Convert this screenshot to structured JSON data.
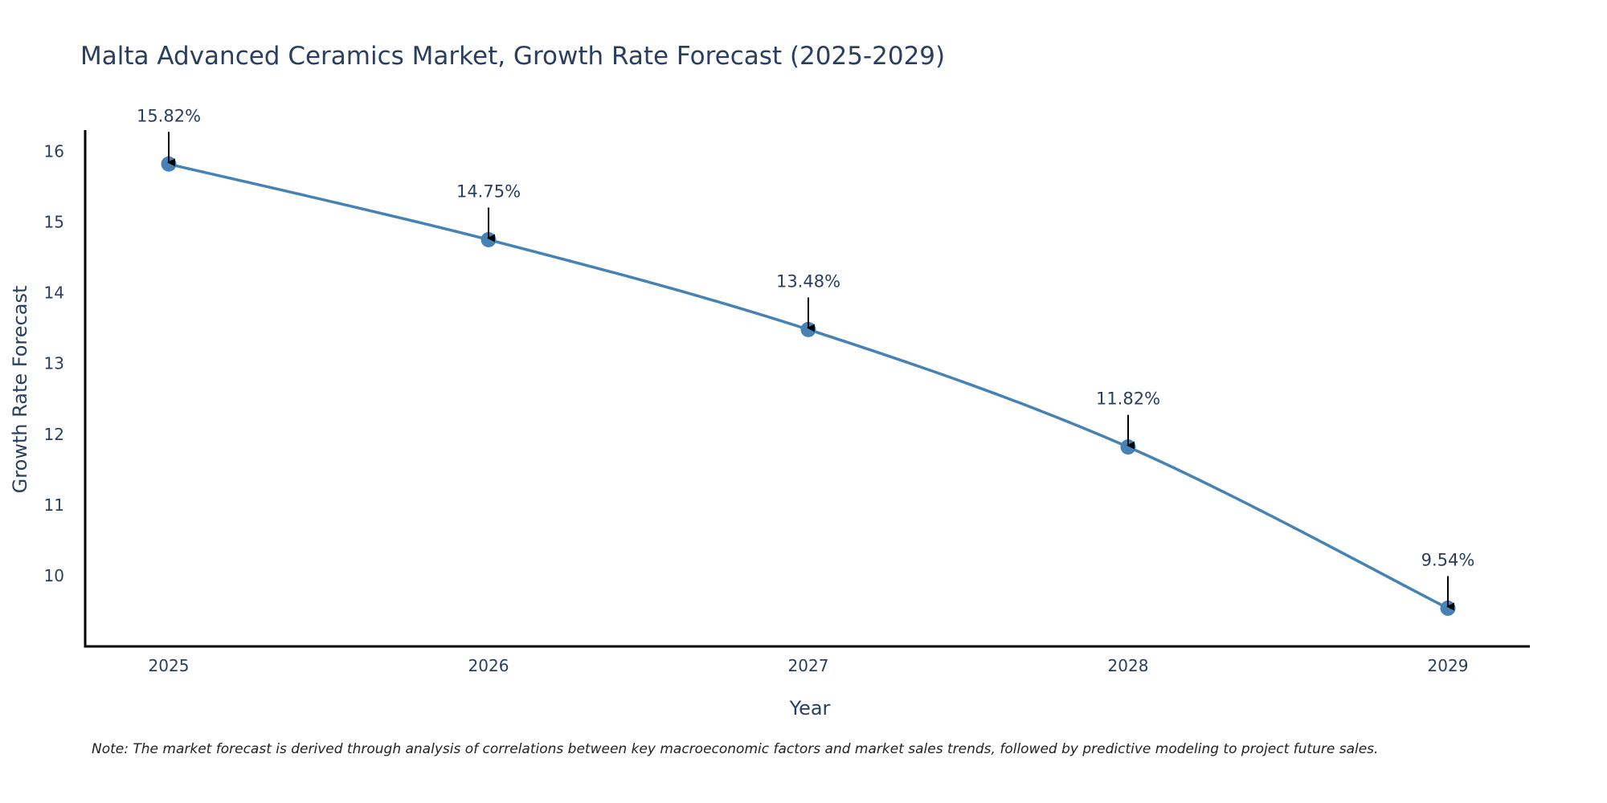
{
  "chart_data": {
    "type": "line",
    "title": "Malta Advanced Ceramics Market, Growth Rate Forecast (2025-2029)",
    "xlabel": "Year",
    "ylabel": "Growth Rate Forecast",
    "categories": [
      "2025",
      "2026",
      "2027",
      "2028",
      "2029"
    ],
    "series": [
      {
        "name": "Growth Rate Forecast",
        "values": [
          15.82,
          14.75,
          13.48,
          11.82,
          9.54
        ],
        "labels": [
          "15.82%",
          "14.75%",
          "13.48%",
          "11.82%",
          "9.54%"
        ],
        "color": "#4682b4"
      }
    ],
    "ylim": [
      9.0,
      16.3
    ],
    "yticks": [
      10,
      11,
      12,
      13,
      14,
      15,
      16
    ],
    "grid": false,
    "legend": "none"
  },
  "note": "Note: The market forecast is derived through analysis of correlations between key macroeconomic factors and market sales trends, followed by predictive modeling to project future sales.",
  "colors": {
    "line": "#4682b4",
    "axis": "#000000",
    "text": "#2a3f5f",
    "arrow": "#000000"
  }
}
